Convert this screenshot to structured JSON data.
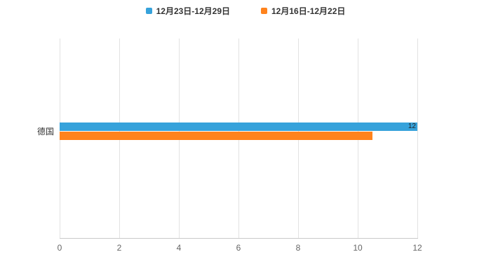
{
  "legend": {
    "items": [
      {
        "label": "12月23日-12月29日",
        "color": "#36a2db"
      },
      {
        "label": "12月16日-12月22日",
        "color": "#ff831d"
      }
    ]
  },
  "chart_data": {
    "type": "bar",
    "orientation": "horizontal",
    "title": "",
    "xlabel": "",
    "ylabel": "",
    "categories": [
      "德国"
    ],
    "series": [
      {
        "name": "12月23日-12月29日",
        "color": "#36a2db",
        "values": [
          12
        ],
        "labels": [
          "12"
        ]
      },
      {
        "name": "12月16日-12月22日",
        "color": "#ff831d",
        "values": [
          10.5
        ],
        "labels": [
          null
        ]
      }
    ],
    "xlim": [
      0,
      12
    ],
    "xticks": [
      0,
      2,
      4,
      6,
      8,
      10,
      12
    ],
    "grid": true,
    "legend_position": "top"
  }
}
